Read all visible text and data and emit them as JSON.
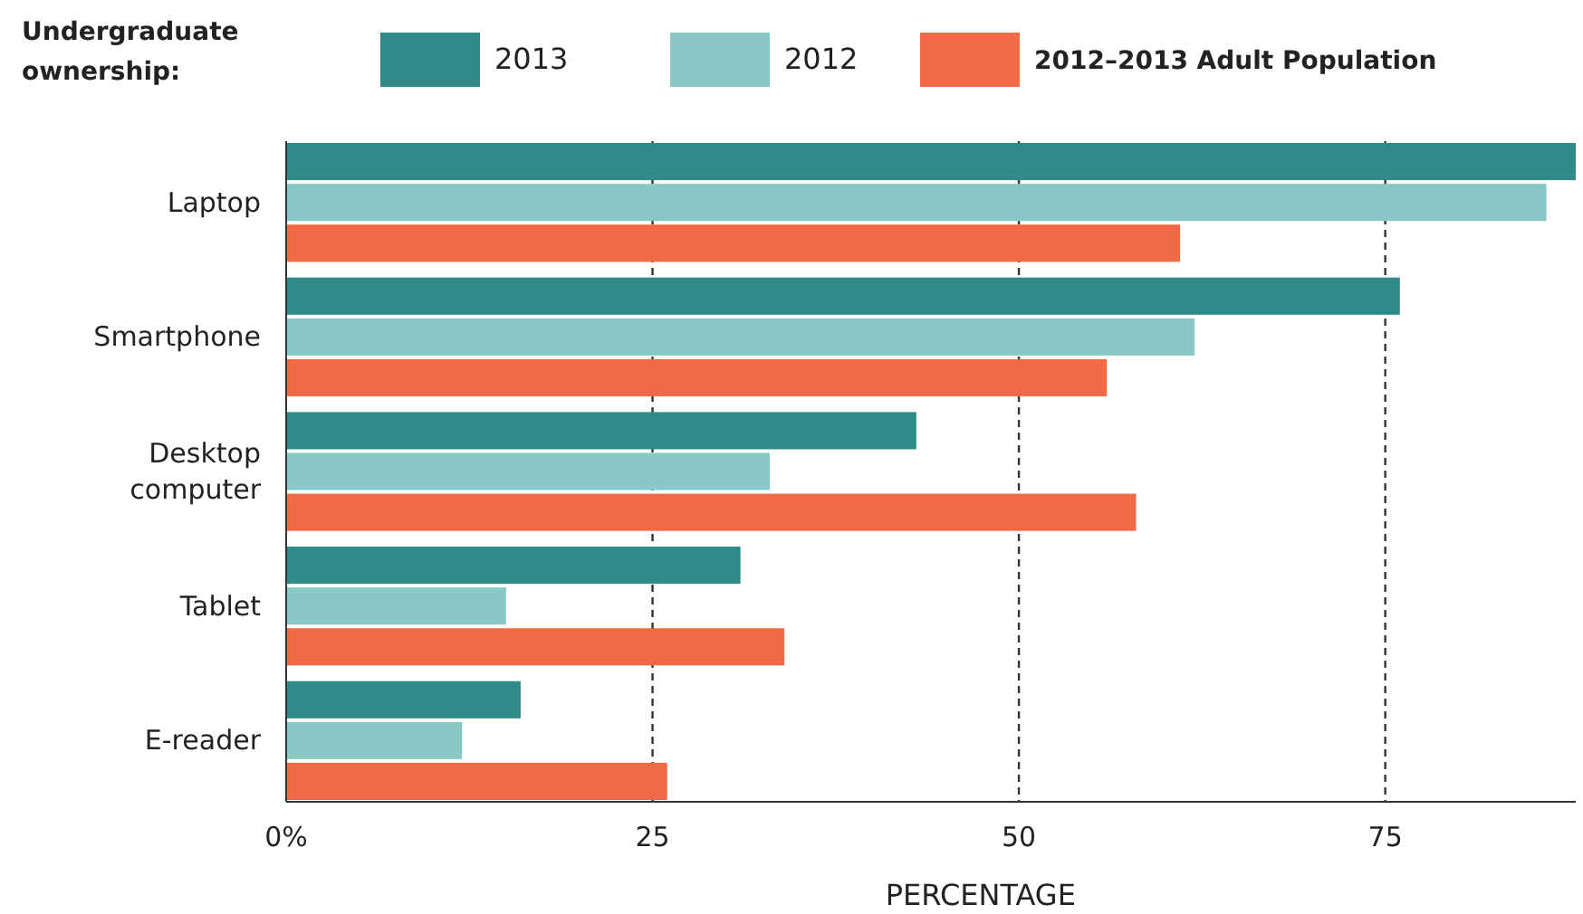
{
  "chart_data": {
    "type": "bar",
    "orientation": "horizontal",
    "legend_title": "Undergraduate ownership:",
    "xlabel": "PERCENTAGE",
    "categories": [
      "Laptop",
      "Smartphone",
      "Desktop computer",
      "Tablet",
      "E-reader"
    ],
    "series": [
      {
        "name": "2013",
        "color": "#2e8b87",
        "values": [
          88,
          76,
          43,
          31,
          16
        ]
      },
      {
        "name": "2012",
        "color": "#8ac8c8",
        "values": [
          86,
          62,
          33,
          15,
          12
        ]
      },
      {
        "name": "2012–2013 Adult Population",
        "color": "#f26a45",
        "values": [
          61,
          56,
          58,
          34,
          26
        ]
      }
    ],
    "xlim": [
      0,
      88
    ],
    "xticks": [
      {
        "value": 0,
        "label": "0%"
      },
      25,
      50,
      75
    ],
    "grid": "x",
    "line_style": "dashed",
    "legend": "top"
  }
}
